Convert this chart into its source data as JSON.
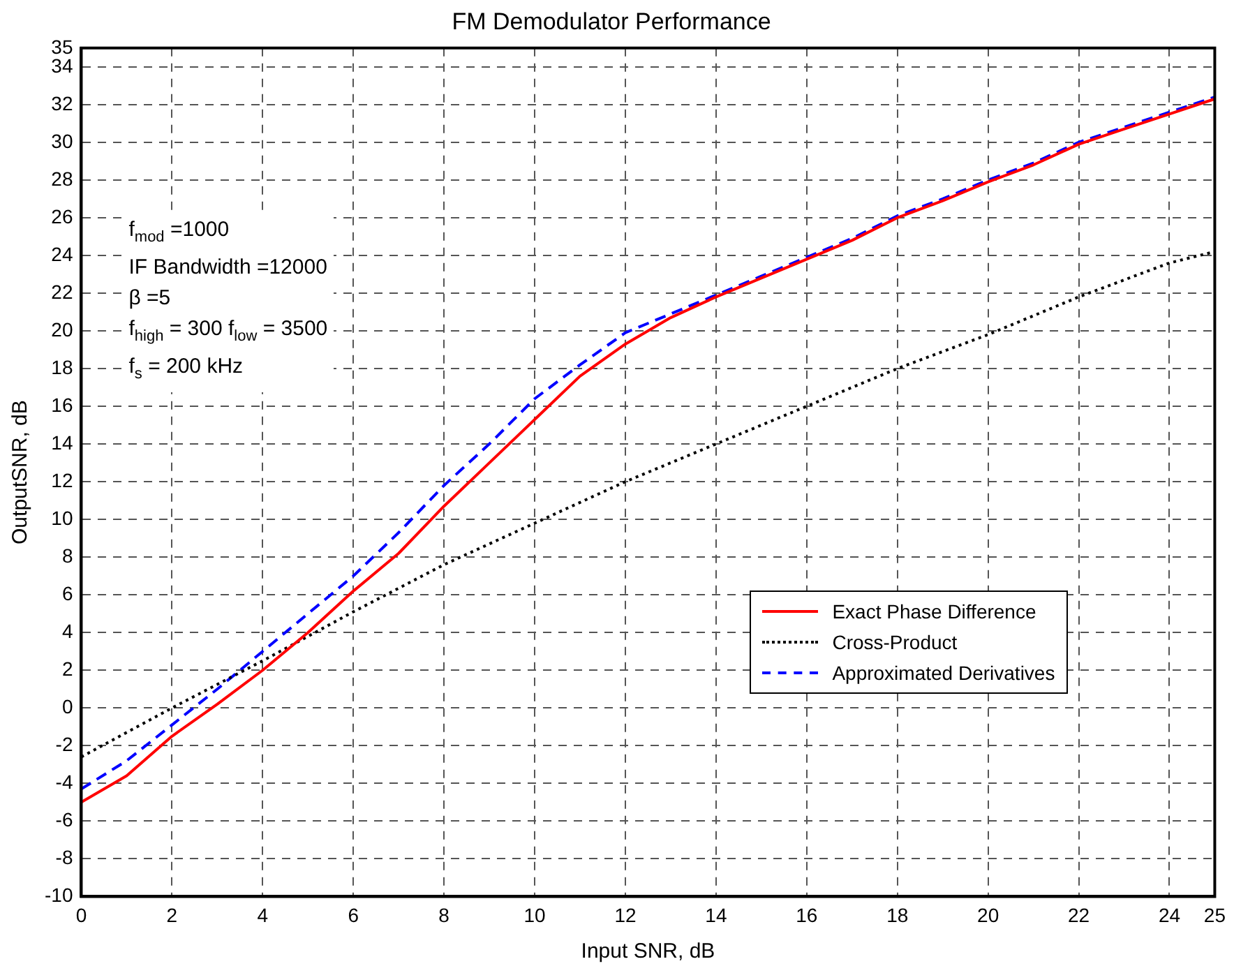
{
  "chart_data": {
    "type": "line",
    "title": "FM Demodulator Performance",
    "xlabel": "Input SNR, dB",
    "ylabel": "OutputSNR, dB",
    "annotations": [
      "f$_{mod}$ =1000",
      "IF Bandwidth =12000",
      "β =5",
      "f$_{high}$ = 300 f$_{low}$ = 3500",
      "f$_{s}$ = 200 kHz"
    ],
    "x": [
      0,
      1,
      2,
      3,
      4,
      5,
      6,
      7,
      8,
      9,
      10,
      11,
      12,
      13,
      14,
      15,
      16,
      17,
      18,
      19,
      20,
      21,
      22,
      23,
      24,
      25
    ],
    "series": [
      {
        "name": "Exact Phase Difference",
        "color": "#ff0000",
        "line_style": "solid",
        "values": [
          -5,
          -3.6,
          -1.5,
          0.2,
          2.0,
          4.0,
          6.2,
          8.2,
          10.7,
          13.0,
          15.3,
          17.6,
          19.3,
          20.7,
          21.8,
          22.8,
          23.8,
          24.8,
          26.0,
          26.9,
          27.9,
          28.8,
          29.9,
          30.7,
          31.5,
          32.3
        ]
      },
      {
        "name": "Cross-Product",
        "color": "#000000",
        "line_style": "dotted",
        "x": [
          0,
          2,
          4,
          6,
          8,
          10,
          12,
          14,
          16,
          18,
          20,
          22,
          24,
          25
        ],
        "values": [
          -2.6,
          0.0,
          2.5,
          5.1,
          7.6,
          9.8,
          12.0,
          14.0,
          16.0,
          18.0,
          19.8,
          21.8,
          23.6,
          24.2
        ]
      },
      {
        "name": "Approximated Derivatives",
        "color": "#0000ff",
        "line_style": "dashed",
        "values": [
          -4.3,
          -2.8,
          -0.9,
          1.0,
          3.0,
          5.0,
          7.0,
          9.3,
          11.8,
          14.0,
          16.4,
          18.2,
          19.9,
          20.9,
          21.9,
          22.9,
          23.9,
          24.9,
          26.1,
          27.0,
          28.0,
          28.9,
          30.0,
          30.8,
          31.6,
          32.4
        ]
      }
    ],
    "xlim": [
      0,
      25
    ],
    "xticks": [
      0,
      2,
      4,
      6,
      8,
      10,
      12,
      14,
      16,
      18,
      20,
      22,
      24,
      25
    ],
    "ylim": [
      -10,
      35
    ],
    "yticks": [
      -10,
      -8,
      -6,
      -4,
      -2,
      0,
      2,
      4,
      6,
      8,
      10,
      12,
      14,
      16,
      18,
      20,
      22,
      24,
      26,
      28,
      30,
      32,
      34,
      35
    ],
    "grid": true,
    "legend": "right",
    "marker": "none"
  }
}
